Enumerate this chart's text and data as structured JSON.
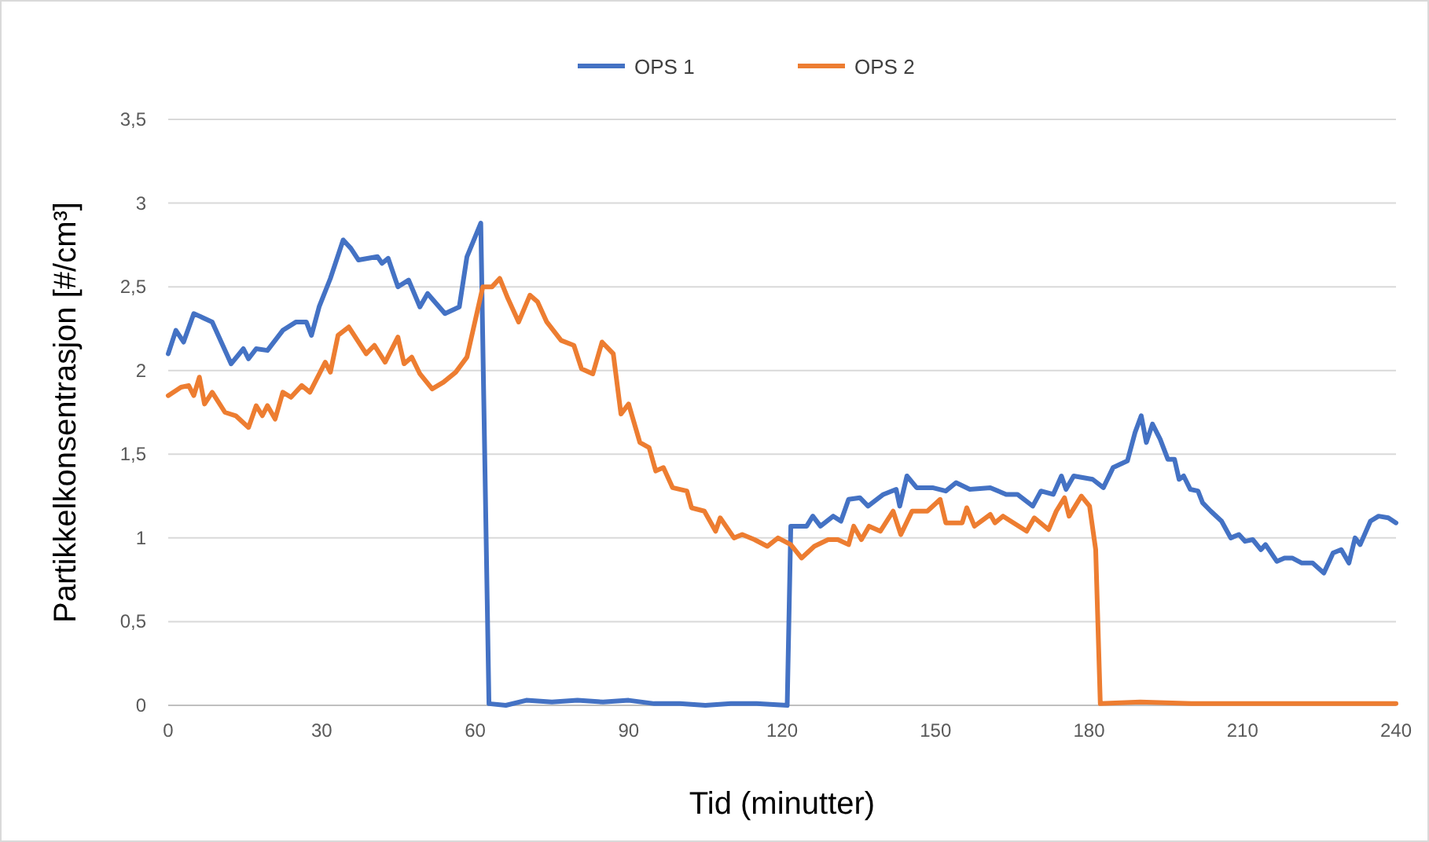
{
  "chart_data": {
    "type": "line",
    "xlabel": "Tid (minutter)",
    "ylabel": "Partikkelkonsentrasjon  [#/cm³]",
    "xlim": [
      0,
      240
    ],
    "xticks": [
      0,
      30,
      60,
      90,
      120,
      150,
      180,
      210,
      240
    ],
    "ylim": [
      0,
      3.5
    ],
    "yticks": [
      0,
      {
        "value": 0.5,
        "label": "0,5"
      },
      1,
      {
        "value": 1.5,
        "label": "1,5"
      },
      2,
      {
        "value": 2.5,
        "label": "2,5"
      },
      3,
      {
        "value": 3.5,
        "label": "3,5"
      }
    ],
    "grid": "y",
    "legend": "top",
    "line_style": "solid",
    "marker": "none",
    "series": [
      {
        "name": "OPS 1",
        "color": "#4472c4",
        "x": [
          0,
          1.5,
          3,
          5,
          8.6,
          12.3,
          14.7,
          15.7,
          17.2,
          19.4,
          22.4,
          25,
          27,
          28,
          29.5,
          31.7,
          34.2,
          35.7,
          37.2,
          40.9,
          41.8,
          43,
          44.9,
          47,
          49.2,
          50.7,
          54.1,
          56.9,
          58.4,
          61.1,
          62.7,
          66,
          70,
          75,
          80,
          85,
          90,
          95,
          100,
          105,
          110,
          115,
          121,
          121.7,
          124.8,
          126,
          127.5,
          130,
          131.5,
          133,
          135.2,
          136.8,
          139.8,
          142.3,
          143,
          144.4,
          146.3,
          149.4,
          152,
          154,
          156.7,
          160.7,
          163.8,
          166,
          169,
          170.6,
          173,
          174.6,
          175.5,
          177,
          180.7,
          182.8,
          184.7,
          187.5,
          189,
          190.2,
          191.2,
          192.4,
          193.9,
          195.4,
          196.7,
          197.6,
          198.5,
          199.8,
          201.3,
          202.2,
          203.8,
          205.9,
          207.7,
          209.3,
          210.5,
          212,
          213.6,
          214.5,
          216.7,
          218.2,
          219.7,
          221.6,
          223.7,
          225.9,
          227.7,
          229.3,
          230.8,
          232,
          233,
          235,
          236.6,
          238.5,
          240
        ],
        "values": [
          2.1,
          2.24,
          2.17,
          2.34,
          2.29,
          2.04,
          2.13,
          2.07,
          2.13,
          2.12,
          2.24,
          2.29,
          2.29,
          2.21,
          2.38,
          2.55,
          2.78,
          2.73,
          2.66,
          2.68,
          2.64,
          2.67,
          2.5,
          2.54,
          2.38,
          2.46,
          2.34,
          2.38,
          2.68,
          2.88,
          0.01,
          0,
          0.03,
          0.02,
          0.03,
          0.02,
          0.03,
          0.01,
          0.01,
          0,
          0.01,
          0.01,
          0,
          1.07,
          1.07,
          1.13,
          1.07,
          1.13,
          1.1,
          1.23,
          1.24,
          1.19,
          1.26,
          1.29,
          1.19,
          1.37,
          1.3,
          1.3,
          1.28,
          1.33,
          1.29,
          1.3,
          1.26,
          1.26,
          1.19,
          1.28,
          1.26,
          1.37,
          1.29,
          1.37,
          1.35,
          1.3,
          1.42,
          1.46,
          1.63,
          1.73,
          1.57,
          1.68,
          1.59,
          1.47,
          1.47,
          1.35,
          1.37,
          1.29,
          1.28,
          1.21,
          1.16,
          1.1,
          1,
          1.02,
          0.98,
          0.99,
          0.93,
          0.96,
          0.86,
          0.88,
          0.88,
          0.85,
          0.85,
          0.79,
          0.91,
          0.93,
          0.85,
          1,
          0.96,
          1.1,
          1.13,
          1.12,
          1.09
        ]
      },
      {
        "name": "OPS 2",
        "color": "#ed7d31",
        "x": [
          0,
          2.5,
          4,
          5,
          6.1,
          7.1,
          8.6,
          11.1,
          13.2,
          15.7,
          17.2,
          18.4,
          19.4,
          20.9,
          22.4,
          24,
          26.1,
          27.7,
          30.7,
          31.7,
          33.2,
          35.3,
          37.2,
          38.7,
          40.3,
          42.4,
          44.9,
          46.1,
          47.6,
          49.2,
          51.6,
          53.8,
          56.2,
          58.4,
          61.5,
          63.3,
          64.8,
          66.4,
          68.5,
          70.7,
          72.2,
          74,
          76.8,
          79.3,
          80.8,
          83,
          84.8,
          87,
          88.5,
          90,
          92.2,
          94,
          95.3,
          96.8,
          98.6,
          101.4,
          102.3,
          104.8,
          107,
          107.9,
          110.6,
          112.2,
          114.6,
          117.1,
          119.2,
          121.7,
          123.8,
          126.3,
          129,
          130.9,
          133,
          134,
          135.5,
          137,
          139.2,
          141.7,
          143.2,
          145.4,
          148.4,
          150.9,
          152,
          155.2,
          156.1,
          157.6,
          160.7,
          161.6,
          163.2,
          164.7,
          167.8,
          169.3,
          172.1,
          173.6,
          175.2,
          176.1,
          178.5,
          180.1,
          181.3,
          182.2,
          190,
          200,
          210,
          220,
          230,
          240
        ],
        "values": [
          1.85,
          1.9,
          1.91,
          1.85,
          1.96,
          1.8,
          1.87,
          1.75,
          1.73,
          1.66,
          1.79,
          1.73,
          1.79,
          1.71,
          1.87,
          1.84,
          1.91,
          1.87,
          2.05,
          1.99,
          2.21,
          2.26,
          2.17,
          2.1,
          2.15,
          2.05,
          2.2,
          2.04,
          2.08,
          1.98,
          1.89,
          1.93,
          1.99,
          2.08,
          2.5,
          2.5,
          2.55,
          2.43,
          2.29,
          2.45,
          2.41,
          2.29,
          2.18,
          2.15,
          2.01,
          1.98,
          2.17,
          2.1,
          1.74,
          1.8,
          1.57,
          1.54,
          1.4,
          1.42,
          1.3,
          1.28,
          1.18,
          1.16,
          1.04,
          1.12,
          1,
          1.02,
          0.99,
          0.95,
          1,
          0.96,
          0.88,
          0.95,
          0.99,
          0.99,
          0.96,
          1.07,
          0.99,
          1.07,
          1.04,
          1.16,
          1.02,
          1.16,
          1.16,
          1.23,
          1.09,
          1.09,
          1.18,
          1.07,
          1.14,
          1.09,
          1.13,
          1.1,
          1.04,
          1.12,
          1.05,
          1.16,
          1.24,
          1.13,
          1.25,
          1.19,
          0.93,
          0.01,
          0.02,
          0.01,
          0.01,
          0.01,
          0.01,
          0.01
        ]
      }
    ]
  }
}
